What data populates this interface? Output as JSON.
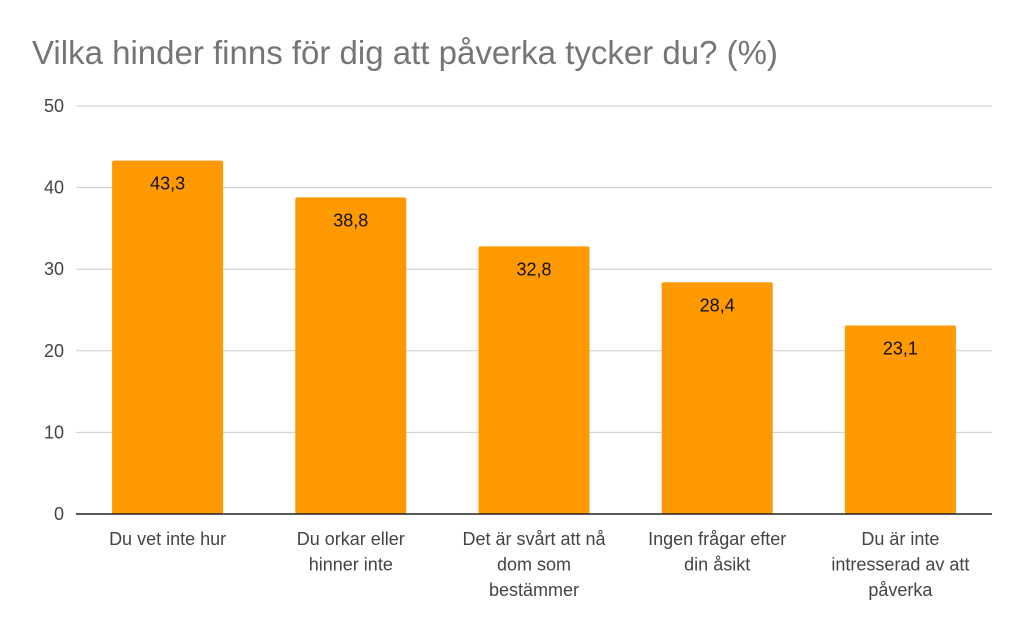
{
  "chart_data": {
    "type": "bar",
    "title": "Vilka hinder finns för dig att påverka tycker du? (%)",
    "xlabel": "",
    "ylabel": "",
    "categories": [
      [
        "Du vet inte hur"
      ],
      [
        "Du orkar eller",
        "hinner inte"
      ],
      [
        "Det är svårt att nå",
        "dom som",
        "bestämmer"
      ],
      [
        "Ingen frågar efter",
        "din åsikt"
      ],
      [
        "Du är inte",
        "intresserad av att",
        "påverka"
      ]
    ],
    "values": [
      43.3,
      38.8,
      32.8,
      28.4,
      23.1
    ],
    "value_labels": [
      "43,3",
      "38,8",
      "32,8",
      "28,4",
      "23,1"
    ],
    "ylim": [
      0,
      50
    ],
    "yticks": [
      0,
      10,
      20,
      30,
      40,
      50
    ],
    "grid": true,
    "legend": "none",
    "bar_color": "#ff9900"
  }
}
